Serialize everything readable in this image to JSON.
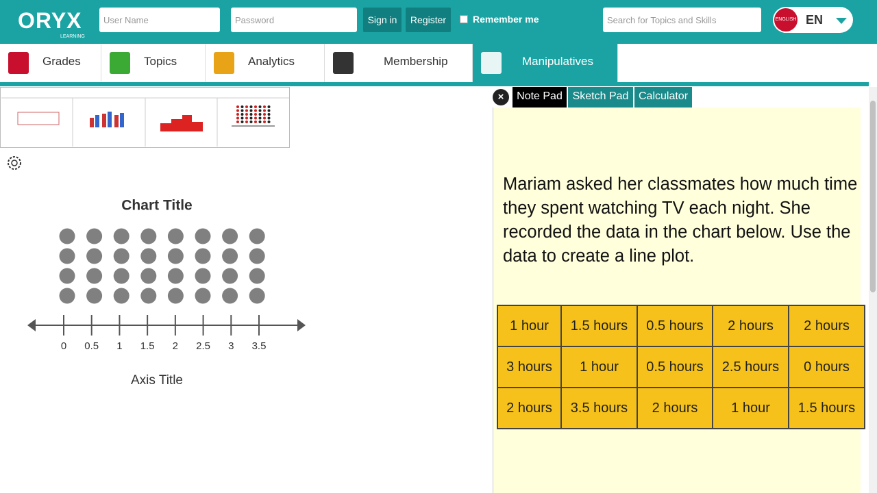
{
  "header": {
    "logo": "ORYX",
    "logo_sub": "LEARNING",
    "username_placeholder": "User Name",
    "password_placeholder": "Password",
    "sign_in": "Sign in",
    "register": "Register",
    "remember_me": "Remember me",
    "search_placeholder": "Search for Topics and Skills",
    "language_badge": "ENGLISH",
    "language": "EN"
  },
  "nav": [
    "Grades",
    "Topics",
    "Analytics",
    "Membership",
    "Manipulatives"
  ],
  "tabs": [
    "Note Pad",
    "Sketch Pad",
    "Calculator"
  ],
  "line_plot": {
    "title": "Chart Title",
    "axis_title": "Axis Title",
    "ticks": [
      0,
      0.5,
      1,
      1.5,
      2,
      2.5,
      3,
      3.5
    ]
  },
  "note": {
    "text": "Mariam asked her classmates how much time they spent watching TV each night. She recorded the data in the chart below. Use the data to create a line plot.",
    "table": {
      "rows": [
        [
          "1 hour",
          "1.5 hours",
          "0.5 hours",
          "2 hours",
          "2 hours"
        ],
        [
          "3 hours",
          "1 hour",
          "0.5 hours",
          "2.5 hours",
          "0 hours"
        ],
        [
          "2 hours",
          "3.5 hours",
          "2 hours",
          "1 hour",
          "1.5 hours"
        ]
      ]
    }
  }
}
